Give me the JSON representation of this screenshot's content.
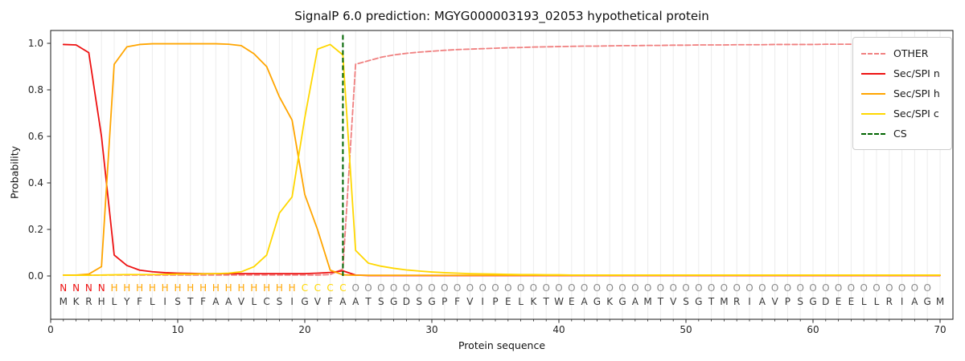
{
  "title": "SignalP 6.0 prediction: MGYG000003193_02053 hypothetical protein",
  "sequence": {
    "amino_acids": "MKRHLYFLISTFAAVLCSIGVFAATSGDSGPFVIPELKTWEAGKGAMTVSGTMRIAVPSGDEELLRIAGM",
    "regions": "NNNNHHHHHHHHHHHHHHHCCCCOOOOOOOOOOOOOOOOOOOOOOOOOOOOOOOOOOOOOOOOOOOOOO",
    "region_colors": {
      "N": "#ee1111",
      "H": "#ffa500",
      "C": "#ffd700",
      "O": "#8a8a8a"
    },
    "amino_color": "#3a3a3a"
  },
  "chart_data": {
    "type": "line",
    "title": "SignalP 6.0 prediction: MGYG000003193_02053 hypothetical protein",
    "xlabel": "Protein sequence",
    "ylabel": "Probability",
    "xlim": [
      0,
      71
    ],
    "ylim": [
      -0.19,
      1.06
    ],
    "x_ticks": [
      0,
      10,
      20,
      30,
      40,
      50,
      60,
      70
    ],
    "y_ticks": [
      "0.0",
      "0.2",
      "0.4",
      "0.6",
      "0.8",
      "1.0"
    ],
    "grid": "vertical-minor-gridlines",
    "legend_position": "upper right",
    "x": [
      1,
      2,
      3,
      4,
      5,
      6,
      7,
      8,
      9,
      10,
      11,
      12,
      13,
      14,
      15,
      16,
      17,
      18,
      19,
      20,
      21,
      22,
      23,
      24,
      25,
      26,
      27,
      28,
      29,
      30,
      31,
      32,
      33,
      34,
      35,
      36,
      37,
      38,
      39,
      40,
      41,
      42,
      43,
      44,
      45,
      46,
      47,
      48,
      49,
      50,
      51,
      52,
      53,
      54,
      55,
      56,
      57,
      58,
      59,
      60,
      61,
      62,
      63,
      64,
      65,
      66,
      67,
      68,
      69,
      70
    ],
    "series": [
      {
        "name": "OTHER",
        "color": "#f08080",
        "dashed": true,
        "values": [
          0.004,
          0.004,
          0.004,
          0.004,
          0.004,
          0.004,
          0.004,
          0.004,
          0.004,
          0.004,
          0.004,
          0.004,
          0.004,
          0.004,
          0.004,
          0.004,
          0.004,
          0.004,
          0.004,
          0.004,
          0.004,
          0.006,
          0.03,
          0.91,
          0.925,
          0.94,
          0.95,
          0.957,
          0.962,
          0.966,
          0.97,
          0.973,
          0.975,
          0.977,
          0.979,
          0.981,
          0.982,
          0.984,
          0.985,
          0.986,
          0.987,
          0.988,
          0.988,
          0.989,
          0.99,
          0.99,
          0.991,
          0.991,
          0.992,
          0.992,
          0.993,
          0.993,
          0.993,
          0.994,
          0.994,
          0.994,
          0.995,
          0.995,
          0.995,
          0.995,
          0.996,
          0.996,
          0.996,
          0.996,
          0.996,
          0.997,
          0.997,
          0.997,
          0.997,
          0.997
        ]
      },
      {
        "name": "Sec/SPI n",
        "color": "#ee1111",
        "dashed": false,
        "values": [
          0.995,
          0.993,
          0.96,
          0.6,
          0.09,
          0.045,
          0.025,
          0.018,
          0.014,
          0.012,
          0.011,
          0.01,
          0.01,
          0.01,
          0.01,
          0.01,
          0.01,
          0.01,
          0.01,
          0.01,
          0.012,
          0.015,
          0.022,
          0.004,
          0.002,
          0.002,
          0.002,
          0.002,
          0.002,
          0.002,
          0.002,
          0.002,
          0.002,
          0.002,
          0.002,
          0.002,
          0.002,
          0.002,
          0.002,
          0.002,
          0.002,
          0.002,
          0.002,
          0.002,
          0.002,
          0.002,
          0.002,
          0.002,
          0.002,
          0.002,
          0.002,
          0.002,
          0.002,
          0.002,
          0.002,
          0.002,
          0.002,
          0.002,
          0.002,
          0.002,
          0.002,
          0.002,
          0.002,
          0.002,
          0.002,
          0.002,
          0.002,
          0.002,
          0.002,
          0.002
        ]
      },
      {
        "name": "Sec/SPI h",
        "color": "#ffa500",
        "dashed": false,
        "values": [
          0.004,
          0.004,
          0.008,
          0.04,
          0.91,
          0.985,
          0.995,
          0.998,
          0.998,
          0.998,
          0.998,
          0.998,
          0.998,
          0.996,
          0.99,
          0.955,
          0.9,
          0.77,
          0.67,
          0.35,
          0.2,
          0.025,
          0.005,
          0.003,
          0.003,
          0.003,
          0.003,
          0.003,
          0.003,
          0.003,
          0.003,
          0.003,
          0.003,
          0.003,
          0.003,
          0.003,
          0.003,
          0.003,
          0.003,
          0.003,
          0.003,
          0.003,
          0.003,
          0.003,
          0.003,
          0.003,
          0.003,
          0.003,
          0.003,
          0.003,
          0.003,
          0.003,
          0.003,
          0.003,
          0.003,
          0.003,
          0.003,
          0.003,
          0.003,
          0.003,
          0.003,
          0.003,
          0.003,
          0.003,
          0.003,
          0.003,
          0.003,
          0.003,
          0.003,
          0.003
        ]
      },
      {
        "name": "Sec/SPI c",
        "color": "#ffd700",
        "dashed": false,
        "values": [
          0.003,
          0.003,
          0.003,
          0.004,
          0.005,
          0.006,
          0.006,
          0.006,
          0.007,
          0.008,
          0.008,
          0.009,
          0.01,
          0.012,
          0.018,
          0.04,
          0.09,
          0.27,
          0.34,
          0.68,
          0.975,
          0.995,
          0.95,
          0.11,
          0.055,
          0.042,
          0.033,
          0.026,
          0.021,
          0.017,
          0.014,
          0.012,
          0.01,
          0.009,
          0.008,
          0.007,
          0.006,
          0.006,
          0.005,
          0.005,
          0.004,
          0.004,
          0.004,
          0.004,
          0.004,
          0.004,
          0.004,
          0.004,
          0.004,
          0.004,
          0.004,
          0.004,
          0.004,
          0.004,
          0.004,
          0.004,
          0.004,
          0.004,
          0.004,
          0.004,
          0.004,
          0.004,
          0.004,
          0.004,
          0.004,
          0.004,
          0.004,
          0.004,
          0.004,
          0.004
        ]
      }
    ],
    "cs_line": {
      "label": "CS",
      "position": 23,
      "color": "#006400",
      "dashed": true
    }
  },
  "style": {
    "grid_color": "#ececec",
    "spine_color": "#1a1a1a",
    "tick_color": "#262626"
  }
}
